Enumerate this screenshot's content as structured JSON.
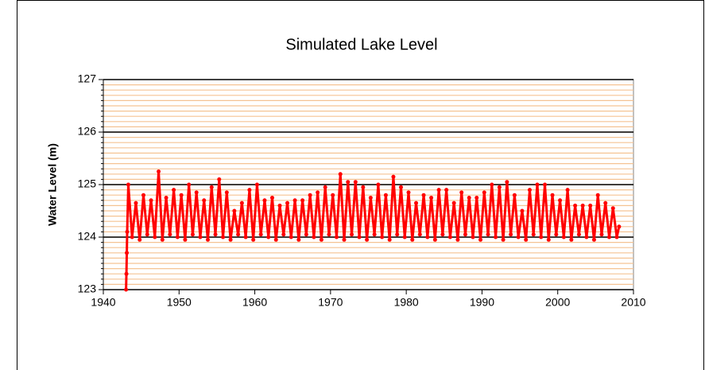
{
  "chart_data": {
    "type": "line",
    "title": "Simulated Lake Level",
    "ylabel": "Water Level (m)",
    "color": "#ff0000",
    "markers": true,
    "xlim": [
      1940,
      2010
    ],
    "xticks": [
      1940,
      1950,
      1960,
      1970,
      1980,
      1990,
      2000,
      2010
    ],
    "ylim": [
      123,
      127
    ],
    "yticks": [
      123,
      124,
      125,
      126,
      127
    ],
    "minor_grid_step": 0.1,
    "x": [
      1943.0,
      1943.05,
      1943.1,
      1943.15,
      1943.3,
      1943.8,
      1944.3,
      1944.8,
      1945.3,
      1945.8,
      1946.3,
      1946.8,
      1947.3,
      1947.8,
      1948.3,
      1948.8,
      1949.3,
      1949.8,
      1950.3,
      1950.8,
      1951.3,
      1951.8,
      1952.3,
      1952.8,
      1953.3,
      1953.8,
      1954.3,
      1954.8,
      1955.3,
      1955.8,
      1956.3,
      1956.8,
      1957.3,
      1957.8,
      1958.3,
      1958.8,
      1959.3,
      1959.8,
      1960.3,
      1960.8,
      1961.3,
      1961.8,
      1962.3,
      1962.8,
      1963.3,
      1963.8,
      1964.3,
      1964.8,
      1965.3,
      1965.8,
      1966.3,
      1966.8,
      1967.3,
      1967.8,
      1968.3,
      1968.8,
      1969.3,
      1969.8,
      1970.3,
      1970.8,
      1971.3,
      1971.8,
      1972.3,
      1972.8,
      1973.3,
      1973.8,
      1974.3,
      1974.8,
      1975.3,
      1975.8,
      1976.3,
      1976.8,
      1977.3,
      1977.8,
      1978.3,
      1978.8,
      1979.3,
      1979.8,
      1980.3,
      1980.8,
      1981.3,
      1981.8,
      1982.3,
      1982.8,
      1983.3,
      1983.8,
      1984.3,
      1984.8,
      1985.3,
      1985.8,
      1986.3,
      1986.8,
      1987.3,
      1987.8,
      1988.3,
      1988.8,
      1989.3,
      1989.8,
      1990.3,
      1990.8,
      1991.3,
      1991.8,
      1992.3,
      1992.8,
      1993.3,
      1993.8,
      1994.3,
      1994.8,
      1995.3,
      1995.8,
      1996.3,
      1996.8,
      1997.3,
      1997.8,
      1998.3,
      1998.8,
      1999.3,
      1999.8,
      2000.3,
      2000.8,
      2001.3,
      2001.8,
      2002.3,
      2002.8,
      2003.3,
      2003.8,
      2004.3,
      2004.8,
      2005.3,
      2005.8,
      2006.3,
      2006.8,
      2007.3,
      2007.8,
      2008.1
    ],
    "values": [
      123.0,
      123.3,
      123.7,
      124.1,
      125.0,
      124.0,
      124.65,
      123.95,
      124.8,
      124.05,
      124.7,
      124.0,
      125.25,
      123.95,
      124.75,
      124.05,
      124.9,
      124.0,
      124.8,
      123.95,
      125.0,
      124.05,
      124.85,
      124.0,
      124.7,
      123.95,
      124.95,
      124.05,
      125.1,
      124.0,
      124.85,
      123.95,
      124.5,
      124.05,
      124.65,
      124.0,
      124.9,
      123.95,
      125.0,
      124.05,
      124.7,
      124.0,
      124.75,
      123.95,
      124.6,
      124.05,
      124.65,
      124.0,
      124.7,
      123.95,
      124.7,
      124.05,
      124.8,
      124.0,
      124.85,
      123.95,
      124.95,
      124.05,
      124.8,
      124.0,
      125.2,
      123.95,
      125.05,
      124.05,
      125.05,
      124.0,
      124.95,
      123.95,
      124.75,
      124.05,
      125.0,
      124.0,
      124.8,
      123.95,
      125.15,
      124.05,
      124.95,
      124.0,
      124.85,
      123.95,
      124.65,
      124.05,
      124.8,
      124.0,
      124.75,
      123.95,
      124.9,
      124.05,
      124.9,
      124.0,
      124.65,
      123.95,
      124.85,
      124.05,
      124.75,
      124.0,
      124.75,
      123.95,
      124.85,
      124.05,
      125.0,
      124.0,
      124.95,
      123.95,
      125.05,
      124.05,
      124.8,
      124.0,
      124.5,
      123.95,
      124.9,
      124.05,
      125.0,
      124.0,
      125.0,
      123.95,
      124.8,
      124.05,
      124.7,
      124.0,
      124.9,
      123.95,
      124.6,
      124.05,
      124.6,
      124.0,
      124.6,
      123.95,
      124.8,
      124.05,
      124.65,
      124.0,
      124.55,
      124.0,
      124.2
    ]
  }
}
